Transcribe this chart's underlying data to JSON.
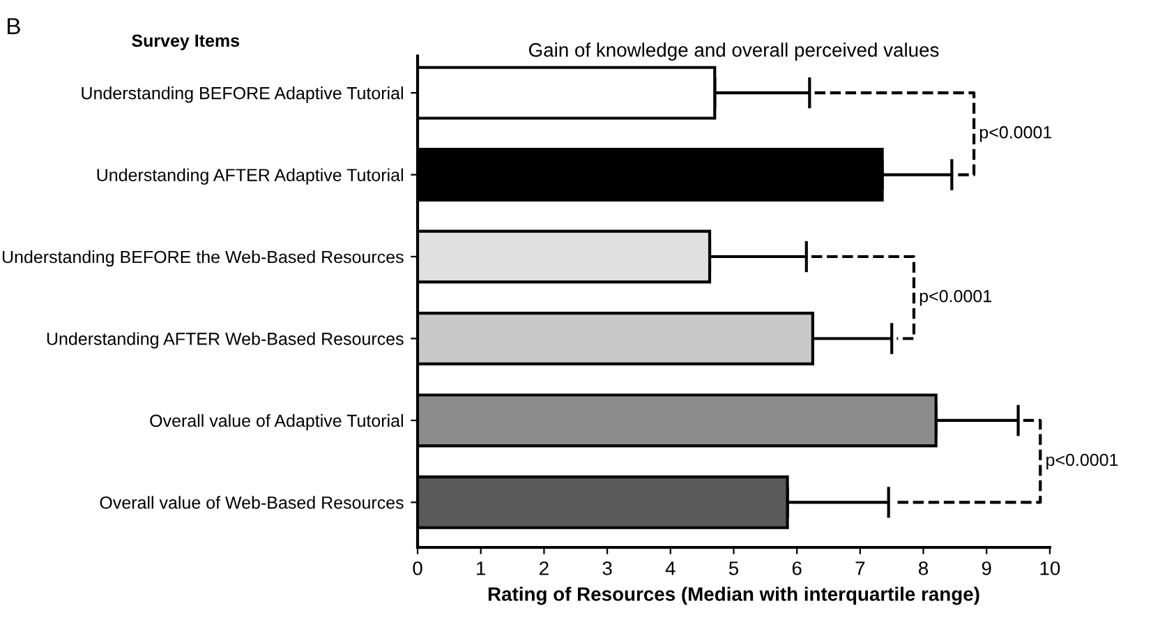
{
  "chart_data": {
    "type": "bar",
    "orientation": "horizontal",
    "title": "Gain of knowledge and overall perceived values",
    "ylabel": "Survey Items",
    "xlabel": "Rating of Resources (Median with interquartile range)",
    "categories": [
      "Understanding BEFORE Adaptive Tutorial",
      "Understanding AFTER Adaptive Tutorial",
      "Understanding BEFORE the Web-Based Resources",
      "Understanding AFTER Web-Based Resources",
      "Overall value of Adaptive Tutorial",
      "Overall value of Web-Based Resources"
    ],
    "values": [
      4.7,
      7.35,
      4.62,
      6.25,
      8.2,
      5.85
    ],
    "errors": [
      [
        4.7,
        6.2
      ],
      [
        7.35,
        8.45
      ],
      [
        4.62,
        6.15
      ],
      [
        6.25,
        7.5
      ],
      [
        8.2,
        9.5
      ],
      [
        5.85,
        7.45
      ]
    ],
    "colors": [
      "#ffffff",
      "#000000",
      "#e0e0e0",
      "#c8c8c8",
      "#8c8c8c",
      "#5a5a5a"
    ],
    "xlim": [
      0,
      10
    ],
    "xticks": [
      0,
      1,
      2,
      3,
      4,
      5,
      6,
      7,
      8,
      9,
      10
    ],
    "grid": false,
    "legend": false,
    "annotations": [
      "B",
      "p<0.0001",
      "p<0.0001",
      "p<0.0001"
    ]
  }
}
